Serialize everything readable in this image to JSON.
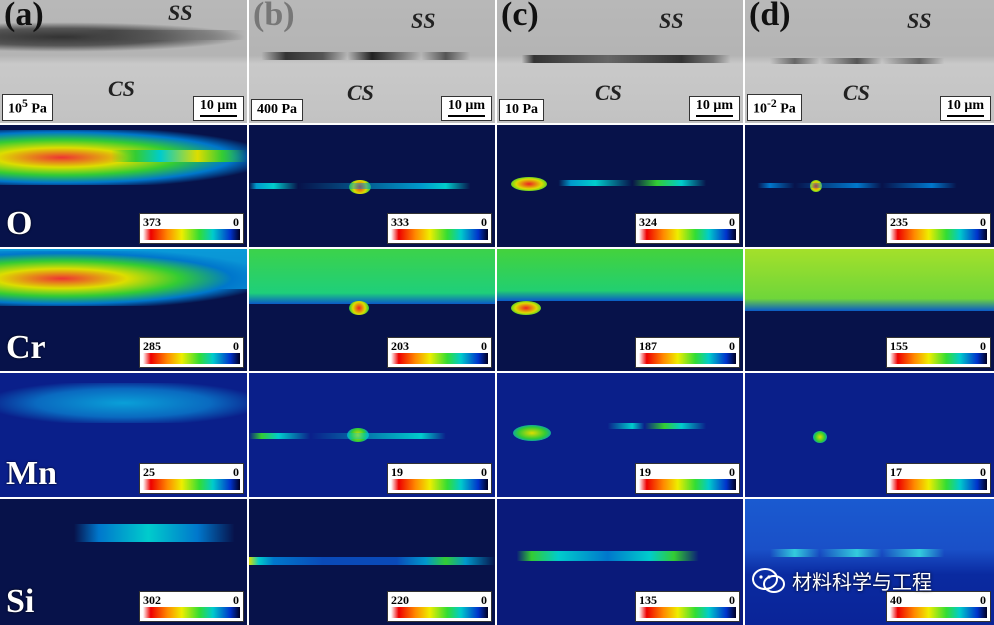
{
  "columns": [
    {
      "letter": "(a)",
      "pressure": "10⁵ Pa",
      "scale": "10 μm",
      "ss": "SS",
      "cs": "CS",
      "maps": {
        "O": "373",
        "Cr": "285",
        "Mn": "25",
        "Si": "302"
      }
    },
    {
      "letter": "(b)",
      "pressure": "400 Pa",
      "scale": "10 μm",
      "ss": "SS",
      "cs": "CS",
      "maps": {
        "O": "333",
        "Cr": "203",
        "Mn": "19",
        "Si": "220"
      }
    },
    {
      "letter": "(c)",
      "pressure": "10 Pa",
      "scale": "10 μm",
      "ss": "SS",
      "cs": "CS",
      "maps": {
        "O": "324",
        "Cr": "187",
        "Mn": "19",
        "Si": "135"
      }
    },
    {
      "letter": "(d)",
      "pressure": "10⁻² Pa",
      "scale": "10 μm",
      "ss": "SS",
      "cs": "CS",
      "maps": {
        "O": "235",
        "Cr": "155",
        "Mn": "17",
        "Si": "40"
      }
    }
  ],
  "elements": [
    "O",
    "Cr",
    "Mn",
    "Si"
  ],
  "colorbar_min": "0",
  "watermark": "材料科学与工程"
}
